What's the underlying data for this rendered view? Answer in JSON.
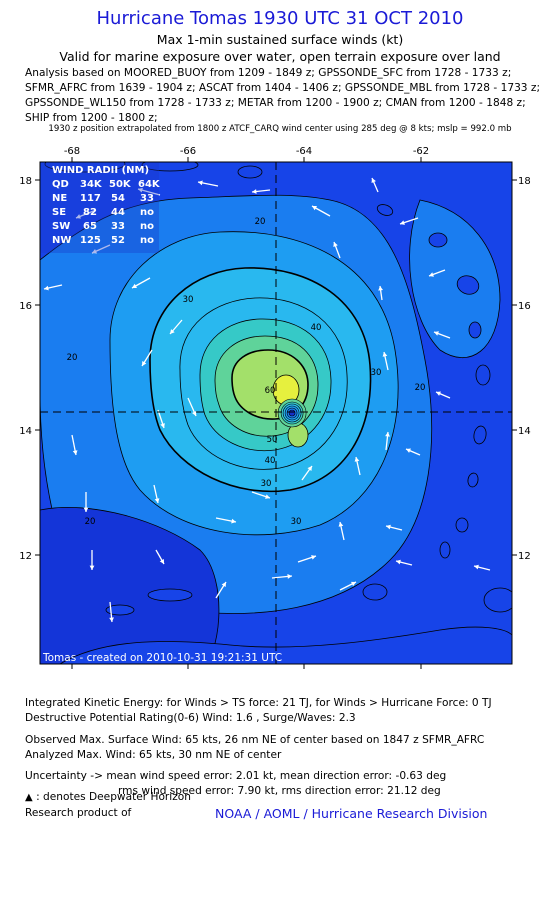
{
  "header": {
    "title": "Hurricane Tomas 1930 UTC 31 OCT 2010",
    "subtitle1": "Max 1-min sustained surface winds (kt)",
    "subtitle2": "Valid for marine exposure over water, open terrain exposure over land",
    "analysis_lines": [
      "Analysis based on MOORED_BUOY from 1209 - 1849 z; GPSSONDE_SFC from 1728 - 1733 z;",
      "SFMR_AFRC from 1639 - 1904 z; ASCAT from 1404 - 1406 z; GPSSONDE_MBL from 1728 - 1733 z;",
      "GPSSONDE_WL150 from 1728 - 1733 z; METAR from 1200 - 1900 z; CMAN from 1200 - 1848 z;",
      "SHIP from 1200 - 1800 z;"
    ],
    "extrapolation": "1930 z position extrapolated from 1800 z ATCF_CARQ wind center using 285 deg @ 8 kts; mslp = 992.0 mb"
  },
  "map": {
    "lon_range": [
      -69.2,
      -60.4
    ],
    "lat_range": [
      10.2,
      18.4
    ],
    "x_tick_labels": [
      "-68",
      "-66",
      "-64",
      "-62"
    ],
    "y_tick_labels": [
      "18",
      "16",
      "14",
      "12"
    ],
    "storm_center": {
      "lon": -64.5,
      "lat": 14.3
    },
    "contour_labels": [
      "20",
      "30",
      "40",
      "20",
      "30",
      "20",
      "30",
      "20",
      "10",
      "60",
      "50",
      "40",
      "30"
    ],
    "credit": "Tomas - created on 2010-10-31 19:21:31 UTC",
    "colors": {
      "ocean": "#1744e8",
      "band_20": "#1a7df0",
      "band_30": "#1e9df2",
      "band_40": "#29b8ef",
      "band_50": "#36c9c7",
      "band_55": "#5fd39a",
      "band_60": "#a3e06a",
      "band_65": "#e6f03e",
      "eye": "#1530c8",
      "low_wind": "#1435d8"
    }
  },
  "wind_radii": {
    "title": "WIND RADII (NM)",
    "headers": [
      "QD",
      "34K",
      "50K",
      "64K"
    ],
    "rows": [
      [
        "NE",
        "117",
        "54",
        "33"
      ],
      [
        "SE",
        "82",
        "44",
        "no"
      ],
      [
        "SW",
        "65",
        "33",
        "no"
      ],
      [
        "NW",
        "125",
        "52",
        "no"
      ]
    ]
  },
  "footer": {
    "ike": "Integrated Kinetic Energy:  for Winds > TS force: 21 TJ,  for Winds > Hurricane Force: 0 TJ",
    "dpr": "Destructive Potential Rating(0-6)   Wind: 1.6 , Surge/Waves: 2.3",
    "observed": "Observed Max. Surface Wind: 65 kts, 26 nm NE of center based on 1847 z SFMR_AFRC",
    "analyzed": "Analyzed Max. Wind: 65 kts, 30 nm NE of center",
    "uncertainty1": "Uncertainty -> mean wind speed error: 2.01 kt,   mean direction error:  -0.63 deg",
    "uncertainty2": "rms wind speed error: 7.90 kt,   rms direction error: 21.12 deg",
    "deepwater": ": denotes Deepwater Horizon",
    "research": "Research product of",
    "noaa": "NOAA / AOML / Hurricane Research Division"
  }
}
